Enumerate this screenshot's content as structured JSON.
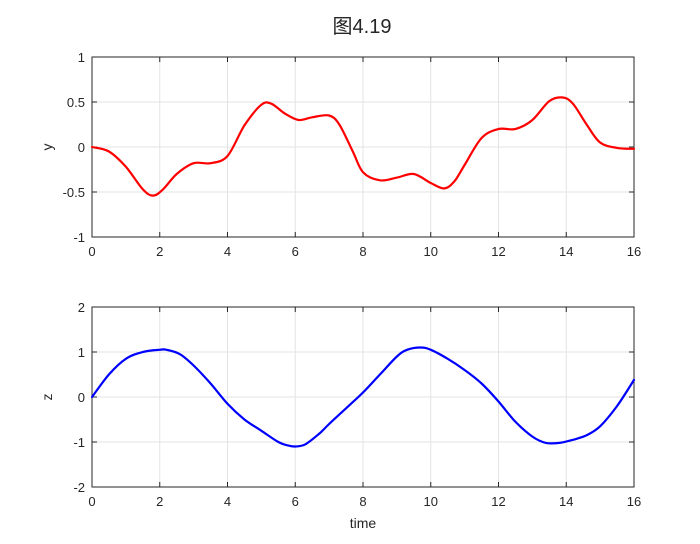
{
  "figure": {
    "title": "图4.19"
  },
  "chart_data": [
    {
      "type": "line",
      "xlabel": "",
      "ylabel": "y",
      "xlim": [
        0,
        16
      ],
      "ylim": [
        -1,
        1
      ],
      "xticks": [
        "0",
        "2",
        "4",
        "6",
        "8",
        "10",
        "12",
        "14",
        "16"
      ],
      "yticks": [
        "-1",
        "-0.5",
        "0",
        "0.5",
        "1"
      ],
      "grid": true,
      "series": [
        {
          "color": "#ff0000",
          "x": [
            0,
            0.5,
            1.0,
            1.5,
            1.8,
            2.1,
            2.5,
            3.0,
            3.5,
            4.0,
            4.5,
            5.0,
            5.3,
            5.7,
            6.1,
            6.5,
            7.0,
            7.3,
            7.7,
            8.0,
            8.5,
            9.0,
            9.5,
            10.0,
            10.4,
            10.7,
            11.0,
            11.5,
            12.0,
            12.5,
            13.0,
            13.5,
            13.9,
            14.2,
            14.6,
            15.0,
            15.5,
            16.0
          ],
          "y": [
            0.0,
            -0.05,
            -0.22,
            -0.47,
            -0.54,
            -0.47,
            -0.3,
            -0.18,
            -0.18,
            -0.1,
            0.24,
            0.47,
            0.48,
            0.37,
            0.3,
            0.33,
            0.35,
            0.25,
            -0.05,
            -0.28,
            -0.37,
            -0.34,
            -0.3,
            -0.4,
            -0.46,
            -0.38,
            -0.2,
            0.1,
            0.2,
            0.2,
            0.3,
            0.51,
            0.55,
            0.48,
            0.25,
            0.05,
            -0.01,
            -0.02
          ]
        }
      ]
    },
    {
      "type": "line",
      "xlabel": "time",
      "ylabel": "z",
      "xlim": [
        0,
        16
      ],
      "ylim": [
        -2,
        2
      ],
      "xticks": [
        "0",
        "2",
        "4",
        "6",
        "8",
        "10",
        "12",
        "14",
        "16"
      ],
      "yticks": [
        "-2",
        "-1",
        "0",
        "1",
        "2"
      ],
      "grid": true,
      "series": [
        {
          "color": "#0000ff",
          "x": [
            0,
            0.5,
            1.0,
            1.5,
            2.0,
            2.2,
            2.6,
            3.0,
            3.5,
            4.0,
            4.5,
            5.0,
            5.5,
            5.8,
            6.0,
            6.3,
            6.7,
            7.0,
            7.5,
            8.0,
            8.5,
            9.0,
            9.3,
            9.7,
            10.0,
            10.5,
            11.0,
            11.5,
            12.0,
            12.5,
            13.0,
            13.4,
            13.8,
            14.2,
            14.6,
            15.0,
            15.5,
            16.0
          ],
          "y": [
            0.0,
            0.5,
            0.85,
            1.0,
            1.05,
            1.05,
            0.95,
            0.7,
            0.3,
            -0.15,
            -0.5,
            -0.75,
            -1.0,
            -1.08,
            -1.1,
            -1.05,
            -0.82,
            -0.6,
            -0.25,
            0.1,
            0.5,
            0.9,
            1.05,
            1.1,
            1.05,
            0.85,
            0.6,
            0.3,
            -0.1,
            -0.55,
            -0.88,
            -1.02,
            -1.02,
            -0.95,
            -0.85,
            -0.65,
            -0.2,
            0.38
          ]
        }
      ]
    }
  ]
}
